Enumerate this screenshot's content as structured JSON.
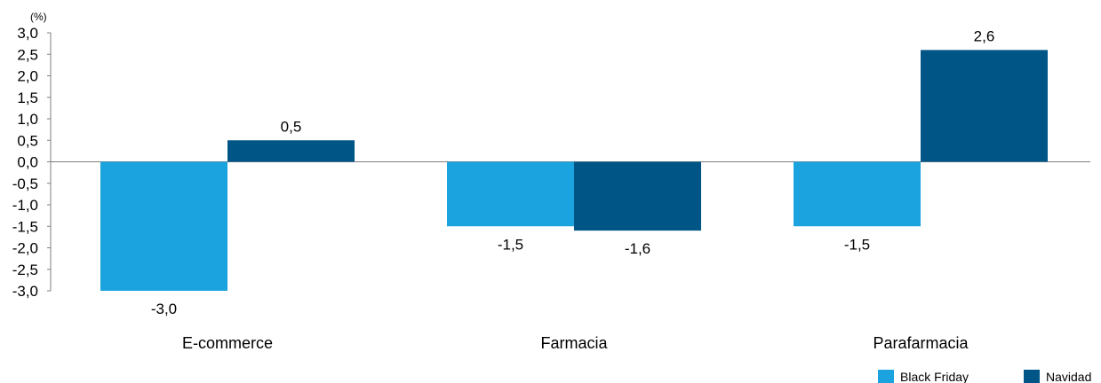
{
  "chart_data": {
    "type": "bar",
    "unit_label": "(%)",
    "categories": [
      "E-commerce",
      "Farmacia",
      "Parafarmacia"
    ],
    "series": [
      {
        "name": "Black Friday",
        "color": "#1aa3de",
        "values": [
          -3.0,
          -1.5,
          -1.5
        ]
      },
      {
        "name": "Navidad",
        "color": "#005587",
        "values": [
          0.5,
          -1.6,
          2.6
        ]
      }
    ],
    "ylim": [
      -3.0,
      3.0
    ],
    "y_ticks": [
      3.0,
      2.5,
      2.0,
      1.5,
      1.0,
      0.5,
      0.0,
      -0.5,
      -1.0,
      -1.5,
      -2.0,
      -2.5,
      -3.0
    ],
    "decimal_separator": ",",
    "grid": false,
    "legend_position": "bottom-right"
  }
}
